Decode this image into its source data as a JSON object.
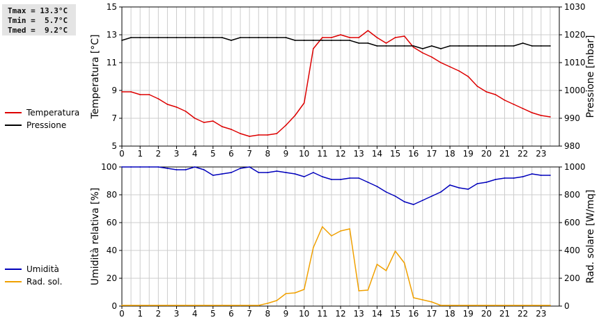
{
  "stats": {
    "lines": [
      "Tmax = 13.3°C",
      "Tmin =  5.7°C",
      "Tmed =  9.2°C"
    ]
  },
  "colors": {
    "temperature": "#dd0000",
    "pressure": "#000000",
    "humidity": "#0000bb",
    "solar": "#f0a000",
    "grid": "#cccccc"
  },
  "chart_data": [
    {
      "type": "line",
      "xlabel": "",
      "xlim": [
        0,
        24
      ],
      "x_ticks": [
        "0",
        "1",
        "2",
        "3",
        "4",
        "5",
        "6",
        "7",
        "8",
        "9",
        "10",
        "11",
        "12",
        "13",
        "14",
        "15",
        "16",
        "17",
        "18",
        "19",
        "20",
        "21",
        "22",
        "23"
      ],
      "ylabel_left": "Temperatura [°C]",
      "ylim_left": [
        5,
        15
      ],
      "yticks_left": [
        5,
        7,
        9,
        11,
        13,
        15
      ],
      "ylabel_right": "Pressione [mbar]",
      "ylim_right": [
        980,
        1030
      ],
      "yticks_right": [
        980,
        990,
        1000,
        1010,
        1020,
        1030
      ],
      "legend": [
        "Temperatura",
        "Pressione"
      ],
      "series": [
        {
          "name": "Temperatura",
          "axis": "left",
          "color_key": "temperature",
          "x": [
            0,
            0.5,
            1,
            1.5,
            2,
            2.5,
            3,
            3.5,
            4,
            4.5,
            5,
            5.5,
            6,
            6.5,
            7,
            7.5,
            8,
            8.5,
            9,
            9.5,
            10,
            10.5,
            11,
            11.5,
            12,
            12.5,
            13,
            13.5,
            14,
            14.5,
            15,
            15.5,
            16,
            16.5,
            17,
            17.5,
            18,
            18.5,
            19,
            19.5,
            20,
            20.5,
            21,
            21.5,
            22,
            22.5,
            23,
            23.5
          ],
          "values": [
            8.9,
            8.9,
            8.7,
            8.7,
            8.4,
            8.0,
            7.8,
            7.5,
            7.0,
            6.7,
            6.8,
            6.4,
            6.2,
            5.9,
            5.7,
            5.8,
            5.8,
            5.9,
            6.5,
            7.2,
            8.1,
            12.0,
            12.8,
            12.8,
            13.0,
            12.8,
            12.8,
            13.3,
            12.8,
            12.4,
            12.8,
            12.9,
            12.1,
            11.7,
            11.4,
            11.0,
            10.7,
            10.4,
            10.0,
            9.3,
            8.9,
            8.7,
            8.3,
            8.0,
            7.7,
            7.4,
            7.2,
            7.1
          ]
        },
        {
          "name": "Pressione",
          "axis": "right",
          "color_key": "pressure",
          "x": [
            0,
            0.5,
            1,
            1.5,
            2,
            2.5,
            3,
            3.5,
            4,
            4.5,
            5,
            5.5,
            6,
            6.5,
            7,
            7.5,
            8,
            8.5,
            9,
            9.5,
            10,
            10.5,
            11,
            11.5,
            12,
            12.5,
            13,
            13.5,
            14,
            14.5,
            15,
            15.5,
            16,
            16.5,
            17,
            17.5,
            18,
            18.5,
            19,
            19.5,
            20,
            20.5,
            21,
            21.5,
            22,
            22.5,
            23,
            23.5
          ],
          "values": [
            1018,
            1019,
            1019,
            1019,
            1019,
            1019,
            1019,
            1019,
            1019,
            1019,
            1019,
            1019,
            1018,
            1019,
            1019,
            1019,
            1019,
            1019,
            1019,
            1018,
            1018,
            1018,
            1018,
            1018,
            1018,
            1018,
            1017,
            1017,
            1016,
            1016,
            1016,
            1016,
            1016,
            1015,
            1016,
            1015,
            1016,
            1016,
            1016,
            1016,
            1016,
            1016,
            1016,
            1016,
            1017,
            1016,
            1016,
            1016
          ]
        }
      ]
    },
    {
      "type": "line",
      "xlabel": "",
      "xlim": [
        0,
        24
      ],
      "x_ticks": [
        "0",
        "1",
        "2",
        "3",
        "4",
        "5",
        "6",
        "7",
        "8",
        "9",
        "10",
        "11",
        "12",
        "13",
        "14",
        "15",
        "16",
        "17",
        "18",
        "19",
        "20",
        "21",
        "22",
        "23"
      ],
      "ylabel_left": "Umidità relativa [%]",
      "ylim_left": [
        0,
        100
      ],
      "yticks_left": [
        0,
        20,
        40,
        60,
        80,
        100
      ],
      "ylabel_right": "Rad. solare [W/mq]",
      "ylim_right": [
        0,
        1000
      ],
      "yticks_right": [
        0,
        200,
        400,
        600,
        800,
        1000
      ],
      "legend": [
        "Umidità",
        "Rad. sol."
      ],
      "series": [
        {
          "name": "Umidità",
          "axis": "left",
          "color_key": "humidity",
          "x": [
            0,
            0.5,
            1,
            1.5,
            2,
            2.5,
            3,
            3.5,
            4,
            4.5,
            5,
            5.5,
            6,
            6.5,
            7,
            7.5,
            8,
            8.5,
            9,
            9.5,
            10,
            10.5,
            11,
            11.5,
            12,
            12.5,
            13,
            13.5,
            14,
            14.5,
            15,
            15.5,
            16,
            16.5,
            17,
            17.5,
            18,
            18.5,
            19,
            19.5,
            20,
            20.5,
            21,
            21.5,
            22,
            22.5,
            23,
            23.5
          ],
          "values": [
            100,
            100,
            100,
            100,
            100,
            99,
            98,
            98,
            100,
            98,
            94,
            95,
            96,
            99,
            100,
            96,
            96,
            97,
            96,
            95,
            93,
            96,
            93,
            91,
            91,
            92,
            92,
            89,
            86,
            82,
            79,
            75,
            73,
            76,
            79,
            82,
            87,
            85,
            84,
            88,
            89,
            91,
            92,
            92,
            93,
            95,
            94,
            94
          ]
        },
        {
          "name": "Rad. sol.",
          "axis": "right",
          "color_key": "solar",
          "x": [
            0,
            0.5,
            1,
            1.5,
            2,
            2.5,
            3,
            3.5,
            4,
            4.5,
            5,
            5.5,
            6,
            6.5,
            7,
            7.5,
            8,
            8.5,
            9,
            9.5,
            10,
            10.5,
            11,
            11.5,
            12,
            12.5,
            13,
            13.5,
            14,
            14.5,
            15,
            15.5,
            16,
            16.5,
            17,
            17.5,
            18,
            18.5,
            19,
            19.5,
            20,
            20.5,
            21,
            21.5,
            22,
            22.5,
            23,
            23.5
          ],
          "values": [
            5,
            5,
            5,
            5,
            5,
            5,
            5,
            5,
            5,
            5,
            5,
            5,
            5,
            5,
            5,
            5,
            20,
            40,
            90,
            95,
            120,
            420,
            570,
            505,
            540,
            555,
            110,
            115,
            300,
            255,
            395,
            310,
            60,
            45,
            30,
            5,
            5,
            5,
            5,
            5,
            5,
            5,
            5,
            5,
            5,
            5,
            5,
            5
          ]
        }
      ]
    }
  ]
}
